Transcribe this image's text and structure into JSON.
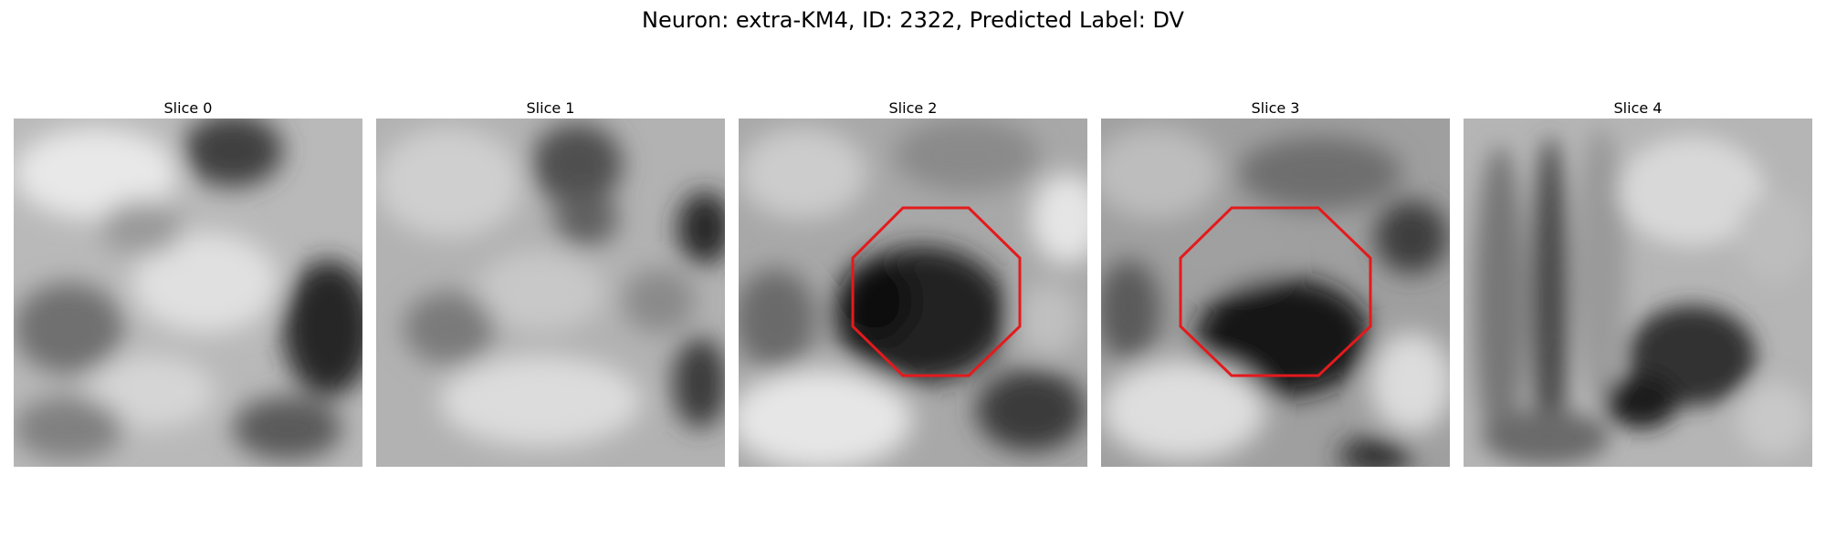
{
  "figure": {
    "title": "Neuron: extra-KM4, ID: 2322, Predicted Label: DV"
  },
  "panels": [
    {
      "title": "Slice 0",
      "roi_outline": false
    },
    {
      "title": "Slice 1",
      "roi_outline": false
    },
    {
      "title": "Slice 2",
      "roi_outline": true
    },
    {
      "title": "Slice 3",
      "roi_outline": true
    },
    {
      "title": "Slice 4",
      "roi_outline": false
    }
  ],
  "colors": {
    "roi_outline": "#e41a1c",
    "colormap": "grayscale"
  }
}
